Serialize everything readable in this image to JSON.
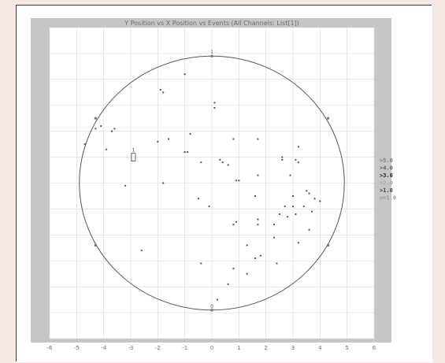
{
  "chart_data": {
    "type": "scatter",
    "title": "Y Position vs X Position vs Events (All Channels: List[1])",
    "xlabel": "",
    "ylabel": "",
    "xlim": [
      -6,
      6
    ],
    "ylim": [
      -6,
      6
    ],
    "x_ticks": [
      "-6",
      "-5",
      "-4",
      "-3",
      "-2",
      "-1",
      "0",
      "1",
      "2",
      "3",
      "4",
      "5",
      "6"
    ],
    "y_ticks": [
      "",
      "",
      "",
      "",
      "",
      "",
      "",
      "",
      "",
      "",
      "",
      "",
      ""
    ],
    "grid": true,
    "boundary_circle": {
      "cx": 0,
      "cy": 0,
      "r": 4.9
    },
    "circle_markers": [
      {
        "x": 0,
        "y": 4.9,
        "label": "1"
      },
      {
        "x": -4.3,
        "y": 2.5,
        "label": ""
      },
      {
        "x": -4.3,
        "y": -2.4,
        "label": ""
      },
      {
        "x": 0,
        "y": -4.9,
        "label": "0"
      },
      {
        "x": 4.3,
        "y": 2.5,
        "label": ""
      },
      {
        "x": 4.3,
        "y": -2.4,
        "label": ""
      }
    ],
    "rect_marker": {
      "x": -2.9,
      "y": 1.0,
      "label": "1"
    },
    "legend": {
      "placement": "right",
      "entries": [
        {
          "label": ">5.0",
          "color": "#7a7a7a"
        },
        {
          "label": ">4.0",
          "color": "#5f5f5f"
        },
        {
          "label": ">3.0",
          "color": "#2b2b2b"
        },
        {
          "label": ">2.0",
          "color": "#a8a8a8"
        },
        {
          "label": ">1.0",
          "color": "#444444"
        },
        {
          "label": ">=1.0",
          "color": "#9a9a9a"
        }
      ]
    },
    "points": [
      {
        "x": -1.0,
        "y": 4.2
      },
      {
        "x": -1.9,
        "y": 3.6
      },
      {
        "x": -1.8,
        "y": 3.5
      },
      {
        "x": 0.1,
        "y": 3.1
      },
      {
        "x": 0.1,
        "y": 2.9
      },
      {
        "x": -3.6,
        "y": 2.1
      },
      {
        "x": -3.7,
        "y": 2.0
      },
      {
        "x": -4.3,
        "y": 2.1
      },
      {
        "x": -4.1,
        "y": 2.2
      },
      {
        "x": -4.7,
        "y": 1.5
      },
      {
        "x": -3.9,
        "y": 1.3
      },
      {
        "x": -2.0,
        "y": 1.6
      },
      {
        "x": -1.6,
        "y": 1.7
      },
      {
        "x": -0.8,
        "y": 1.9
      },
      {
        "x": 0.8,
        "y": 1.7
      },
      {
        "x": 1.7,
        "y": 1.7
      },
      {
        "x": -1.0,
        "y": 1.2
      },
      {
        "x": -0.9,
        "y": 1.2
      },
      {
        "x": 0.3,
        "y": 0.9
      },
      {
        "x": 0.4,
        "y": 0.8
      },
      {
        "x": 0.6,
        "y": 0.7
      },
      {
        "x": -0.4,
        "y": 0.8
      },
      {
        "x": 2.6,
        "y": 1.0
      },
      {
        "x": 2.6,
        "y": 0.9
      },
      {
        "x": 3.1,
        "y": 0.9
      },
      {
        "x": 3.2,
        "y": 0.8
      },
      {
        "x": 3.2,
        "y": 1.4
      },
      {
        "x": 1.7,
        "y": 0.3
      },
      {
        "x": 0.9,
        "y": 0.1
      },
      {
        "x": 1.0,
        "y": 0.1
      },
      {
        "x": -1.8,
        "y": 0.0
      },
      {
        "x": -3.2,
        "y": -0.1
      },
      {
        "x": 1.6,
        "y": -0.5
      },
      {
        "x": 2.9,
        "y": 0.3
      },
      {
        "x": 3.0,
        "y": -0.5
      },
      {
        "x": 3.5,
        "y": -0.3
      },
      {
        "x": 3.6,
        "y": -0.4
      },
      {
        "x": 3.8,
        "y": -0.6
      },
      {
        "x": 4.0,
        "y": -0.7
      },
      {
        "x": -0.5,
        "y": -0.6
      },
      {
        "x": -0.1,
        "y": -0.9
      },
      {
        "x": 0.9,
        "y": -1.5
      },
      {
        "x": 0.8,
        "y": -1.6
      },
      {
        "x": 1.7,
        "y": -1.4
      },
      {
        "x": 1.7,
        "y": -1.6
      },
      {
        "x": 2.3,
        "y": -1.6
      },
      {
        "x": 2.5,
        "y": -1.2
      },
      {
        "x": 2.7,
        "y": -0.9
      },
      {
        "x": 2.8,
        "y": -1.3
      },
      {
        "x": 3.0,
        "y": -0.9
      },
      {
        "x": 3.1,
        "y": -1.2
      },
      {
        "x": 3.4,
        "y": -0.9
      },
      {
        "x": 3.7,
        "y": -1.1
      },
      {
        "x": 3.6,
        "y": -1.8
      },
      {
        "x": 3.2,
        "y": -2.3
      },
      {
        "x": 2.3,
        "y": -2.1
      },
      {
        "x": 1.3,
        "y": -2.4
      },
      {
        "x": 1.6,
        "y": -2.9
      },
      {
        "x": 1.8,
        "y": -2.8
      },
      {
        "x": 0.8,
        "y": -3.3
      },
      {
        "x": 2.4,
        "y": -3.1
      },
      {
        "x": -2.6,
        "y": -2.6
      },
      {
        "x": -0.4,
        "y": -3.1
      },
      {
        "x": 0.6,
        "y": -3.9
      },
      {
        "x": 0.2,
        "y": -4.5
      },
      {
        "x": 1.3,
        "y": -3.5
      }
    ]
  }
}
